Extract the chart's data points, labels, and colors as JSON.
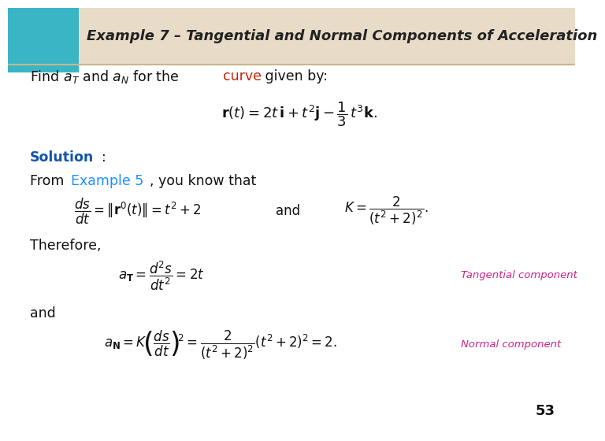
{
  "header_box_color": "#3ab5c6",
  "header_stripe_color": "#e8dcc8",
  "header_text": "Example 7 – Tangential and Normal Components of Acceleration",
  "header_text_color": "#222222",
  "page_number": "53",
  "blue_color": "#1e90ff",
  "red_color": "#cc2200",
  "pink_color": "#cc2288",
  "solution_color": "#1155aa",
  "body_text_color": "#111111"
}
